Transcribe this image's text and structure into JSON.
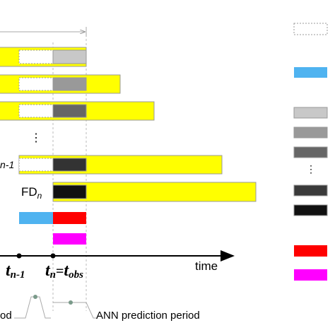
{
  "labels": {
    "fd_prev": "n-1",
    "fd_n_main": "FD",
    "fd_n_sub": "n",
    "dots": "⋮",
    "legend_dots": "⋮",
    "axis": "time",
    "t1_main": "t",
    "t1_sub": "n-1",
    "t2_main": "t",
    "t2_sub": "n",
    "eq": "=",
    "t3_main": "t",
    "t3_sub": "obs",
    "left_period": "od",
    "ann_period": "ANN prediction period"
  }
}
